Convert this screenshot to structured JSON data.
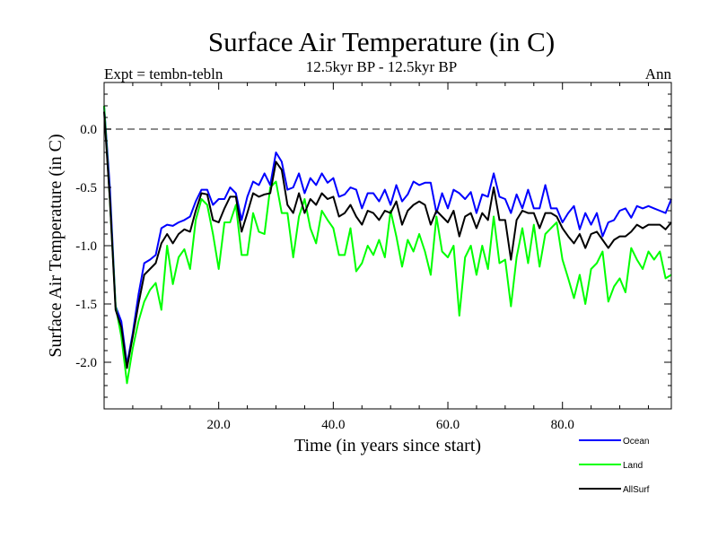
{
  "chart_data": {
    "type": "line",
    "title": "Surface Air Temperature (in C)",
    "subtitle_left": "Expt = tembn-tebln",
    "subtitle_center": "12.5kyr BP - 12.5kyr BP",
    "subtitle_right": "Ann",
    "xlabel": "Time (in years since start)",
    "ylabel": "Surface Air Temperature (in C)",
    "xlim": [
      0,
      99
    ],
    "ylim": [
      -2.4,
      0.4
    ],
    "xticks": [
      20,
      40,
      60,
      80
    ],
    "xtick_labels": [
      "20.0",
      "40.0",
      "60.0",
      "80.0"
    ],
    "yticks": [
      0.0,
      -0.5,
      -1.0,
      -1.5,
      -2.0
    ],
    "ytick_labels": [
      "0.0",
      "-0.5",
      "-1.0",
      "-1.5",
      "-2.0"
    ],
    "reference_line": 0.0,
    "x": [
      0,
      1,
      2,
      3,
      4,
      5,
      6,
      7,
      8,
      9,
      10,
      11,
      12,
      13,
      14,
      15,
      16,
      17,
      18,
      19,
      20,
      21,
      22,
      23,
      24,
      25,
      26,
      27,
      28,
      29,
      30,
      31,
      32,
      33,
      34,
      35,
      36,
      37,
      38,
      39,
      40,
      41,
      42,
      43,
      44,
      45,
      46,
      47,
      48,
      49,
      50,
      51,
      52,
      53,
      54,
      55,
      56,
      57,
      58,
      59,
      60,
      61,
      62,
      63,
      64,
      65,
      66,
      67,
      68,
      69,
      70,
      71,
      72,
      73,
      74,
      75,
      76,
      77,
      78,
      79,
      80,
      81,
      82,
      83,
      84,
      85,
      86,
      87,
      88,
      89,
      90,
      91,
      92,
      93,
      94,
      95,
      96,
      97,
      98,
      99
    ],
    "series": [
      {
        "name": "Ocean",
        "color": "#0000ff",
        "values": [
          0.2,
          -0.5,
          -1.52,
          -1.65,
          -2.02,
          -1.75,
          -1.42,
          -1.15,
          -1.12,
          -1.08,
          -0.85,
          -0.82,
          -0.83,
          -0.8,
          -0.78,
          -0.75,
          -0.62,
          -0.52,
          -0.52,
          -0.65,
          -0.6,
          -0.6,
          -0.5,
          -0.55,
          -0.78,
          -0.58,
          -0.45,
          -0.48,
          -0.38,
          -0.48,
          -0.2,
          -0.28,
          -0.52,
          -0.5,
          -0.38,
          -0.55,
          -0.42,
          -0.48,
          -0.38,
          -0.46,
          -0.42,
          -0.58,
          -0.56,
          -0.5,
          -0.52,
          -0.68,
          -0.55,
          -0.55,
          -0.62,
          -0.52,
          -0.65,
          -0.48,
          -0.62,
          -0.56,
          -0.45,
          -0.48,
          -0.46,
          -0.46,
          -0.72,
          -0.55,
          -0.68,
          -0.52,
          -0.55,
          -0.6,
          -0.54,
          -0.72,
          -0.56,
          -0.58,
          -0.38,
          -0.58,
          -0.6,
          -0.72,
          -0.56,
          -0.68,
          -0.52,
          -0.68,
          -0.68,
          -0.48,
          -0.68,
          -0.68,
          -0.8,
          -0.72,
          -0.66,
          -0.86,
          -0.72,
          -0.82,
          -0.72,
          -0.92,
          -0.8,
          -0.78,
          -0.7,
          -0.68,
          -0.76,
          -0.66,
          -0.68,
          -0.66,
          -0.68,
          -0.7,
          -0.72,
          -0.6
        ]
      },
      {
        "name": "Land",
        "color": "#00ff00",
        "values": [
          0.2,
          -0.6,
          -1.52,
          -1.78,
          -2.18,
          -1.88,
          -1.65,
          -1.48,
          -1.38,
          -1.32,
          -1.55,
          -1.0,
          -1.33,
          -1.1,
          -1.03,
          -1.2,
          -0.78,
          -0.6,
          -0.65,
          -0.9,
          -1.2,
          -0.8,
          -0.8,
          -0.65,
          -1.08,
          -1.08,
          -0.72,
          -0.88,
          -0.9,
          -0.5,
          -0.45,
          -0.72,
          -0.72,
          -1.1,
          -0.75,
          -0.6,
          -0.85,
          -0.98,
          -0.7,
          -0.78,
          -0.85,
          -1.08,
          -1.08,
          -0.85,
          -1.22,
          -1.15,
          -1.0,
          -1.08,
          -0.95,
          -1.1,
          -0.7,
          -0.92,
          -1.18,
          -0.95,
          -1.05,
          -0.9,
          -1.05,
          -1.25,
          -0.75,
          -1.05,
          -1.1,
          -1.0,
          -1.6,
          -1.1,
          -1.0,
          -1.25,
          -1.0,
          -1.2,
          -0.75,
          -1.15,
          -1.12,
          -1.52,
          -1.1,
          -0.85,
          -1.15,
          -0.82,
          -1.18,
          -0.9,
          -0.85,
          -0.8,
          -1.12,
          -1.28,
          -1.45,
          -1.25,
          -1.5,
          -1.2,
          -1.15,
          -1.05,
          -1.48,
          -1.35,
          -1.28,
          -1.4,
          -1.02,
          -1.12,
          -1.2,
          -1.05,
          -1.12,
          -1.05,
          -1.28,
          -1.25
        ]
      },
      {
        "name": "AllSurf",
        "color": "#000000",
        "values": [
          0.15,
          -0.6,
          -1.55,
          -1.7,
          -2.05,
          -1.78,
          -1.5,
          -1.25,
          -1.2,
          -1.15,
          -0.98,
          -0.9,
          -0.98,
          -0.9,
          -0.86,
          -0.88,
          -0.7,
          -0.55,
          -0.56,
          -0.78,
          -0.8,
          -0.68,
          -0.58,
          -0.58,
          -0.88,
          -0.72,
          -0.55,
          -0.58,
          -0.56,
          -0.55,
          -0.28,
          -0.35,
          -0.65,
          -0.72,
          -0.55,
          -0.72,
          -0.6,
          -0.65,
          -0.55,
          -0.6,
          -0.58,
          -0.75,
          -0.72,
          -0.65,
          -0.75,
          -0.82,
          -0.7,
          -0.72,
          -0.78,
          -0.7,
          -0.72,
          -0.62,
          -0.82,
          -0.7,
          -0.65,
          -0.62,
          -0.65,
          -0.82,
          -0.7,
          -0.75,
          -0.8,
          -0.7,
          -0.92,
          -0.75,
          -0.72,
          -0.85,
          -0.72,
          -0.78,
          -0.5,
          -0.78,
          -0.78,
          -1.12,
          -0.78,
          -0.7,
          -0.72,
          -0.72,
          -0.85,
          -0.72,
          -0.72,
          -0.75,
          -0.85,
          -0.92,
          -0.98,
          -0.9,
          -1.02,
          -0.9,
          -0.88,
          -0.95,
          -1.02,
          -0.95,
          -0.92,
          -0.92,
          -0.88,
          -0.82,
          -0.85,
          -0.82,
          -0.82,
          -0.82,
          -0.86,
          -0.8
        ]
      }
    ],
    "legend": [
      {
        "name": "Ocean",
        "color": "#0000ff"
      },
      {
        "name": "Land",
        "color": "#00ff00"
      },
      {
        "name": "AllSurf",
        "color": "#000000"
      }
    ],
    "legend_position": "bottom-right"
  }
}
